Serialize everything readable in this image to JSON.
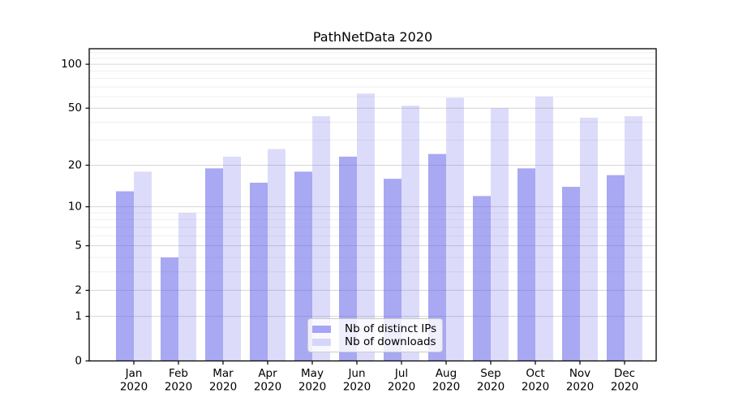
{
  "chart_data": {
    "type": "bar",
    "title": "PathNetData 2020",
    "categories": [
      "Jan",
      "Feb",
      "Mar",
      "Apr",
      "May",
      "Jun",
      "Jul",
      "Aug",
      "Sep",
      "Oct",
      "Nov",
      "Dec"
    ],
    "year_label": "2020",
    "series": [
      {
        "name": "Nb of distinct IPs",
        "color": "rgba(97,97,233,0.55)",
        "values": [
          13,
          4,
          19,
          15,
          18,
          23,
          16,
          24,
          12,
          19,
          14,
          17
        ]
      },
      {
        "name": "Nb of downloads",
        "color": "rgba(97,97,233,0.22)",
        "values": [
          18,
          9,
          23,
          26,
          44,
          63,
          52,
          59,
          50,
          60,
          43,
          44
        ]
      }
    ],
    "xlabel": "",
    "ylabel": "",
    "yscale": "log1p",
    "ylim": [
      0,
      127.6
    ],
    "yticks_major": [
      0,
      1,
      2,
      5,
      10,
      20,
      50,
      100
    ],
    "yticks_minor": [
      3,
      4,
      6,
      7,
      8,
      9,
      30,
      40,
      60,
      70,
      80,
      90,
      110,
      120
    ],
    "grid": "horizontal",
    "legend_position": "lower-center-inside"
  },
  "style": {
    "grid_major_color": "#d6d6d6",
    "grid_minor_color": "#eeeeee",
    "axis_color": "#000000",
    "text_color": "#000000"
  }
}
